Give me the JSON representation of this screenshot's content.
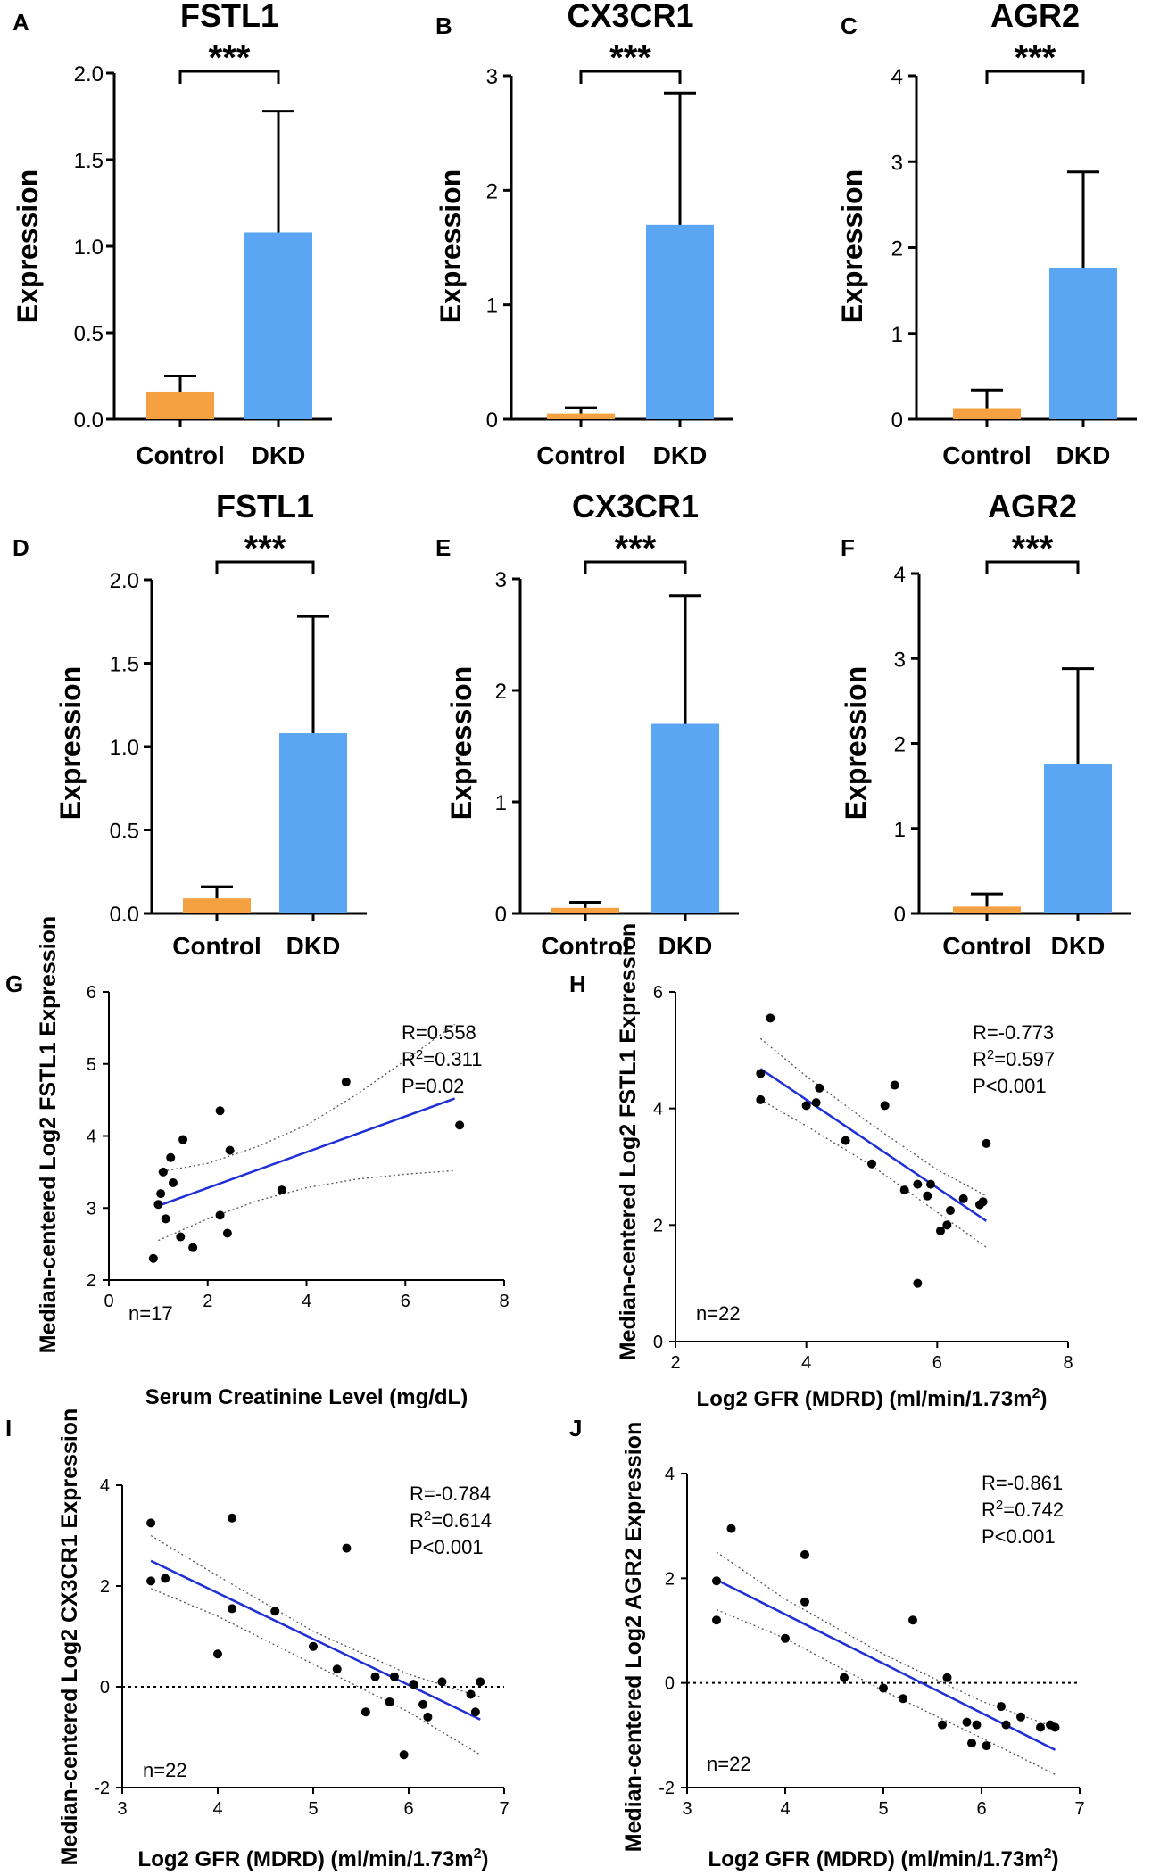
{
  "colors": {
    "control": "#F5A142",
    "dkd": "#5AA6F2",
    "fit": "#1F2FD6",
    "ci": "#555555",
    "point": "#000000"
  },
  "chart_data": [
    {
      "type": "bar",
      "panel": "A",
      "title": "FSTL1",
      "ylabel": "Expression",
      "categories": [
        "Control",
        "DKD"
      ],
      "values": [
        0.16,
        1.08
      ],
      "errors": [
        0.09,
        0.7
      ],
      "ylim": [
        0,
        2.0
      ],
      "yticks": [
        "0.0",
        "0.5",
        "1.0",
        "1.5",
        "2.0"
      ],
      "significance": "***"
    },
    {
      "type": "bar",
      "panel": "B",
      "title": "CX3CR1",
      "ylabel": "Expression",
      "categories": [
        "Control",
        "DKD"
      ],
      "values": [
        0.05,
        1.7
      ],
      "errors": [
        0.05,
        1.15
      ],
      "ylim": [
        0,
        3
      ],
      "yticks": [
        "0",
        "1",
        "2",
        "3"
      ],
      "significance": "***"
    },
    {
      "type": "bar",
      "panel": "C",
      "title": "AGR2",
      "ylabel": "Expression",
      "categories": [
        "Control",
        "DKD"
      ],
      "values": [
        0.13,
        1.76
      ],
      "errors": [
        0.21,
        1.12
      ],
      "ylim": [
        0,
        4
      ],
      "yticks": [
        "0",
        "1",
        "2",
        "3",
        "4"
      ],
      "significance": "***"
    },
    {
      "type": "bar",
      "panel": "D",
      "title": "FSTL1",
      "ylabel": "Expression",
      "categories": [
        "Control",
        "DKD"
      ],
      "values": [
        0.09,
        1.08
      ],
      "errors": [
        0.07,
        0.7
      ],
      "ylim": [
        0,
        2.0
      ],
      "yticks": [
        "0.0",
        "0.5",
        "1.0",
        "1.5",
        "2.0"
      ],
      "significance": "***"
    },
    {
      "type": "bar",
      "panel": "E",
      "title": "CX3CR1",
      "ylabel": "Expression",
      "categories": [
        "Control",
        "DKD"
      ],
      "values": [
        0.05,
        1.7
      ],
      "errors": [
        0.05,
        1.15
      ],
      "ylim": [
        0,
        3
      ],
      "yticks": [
        "0",
        "1",
        "2",
        "3"
      ],
      "significance": "***"
    },
    {
      "type": "bar",
      "panel": "F",
      "title": "AGR2",
      "ylabel": "Expression",
      "categories": [
        "Control",
        "DKD"
      ],
      "values": [
        0.08,
        1.76
      ],
      "errors": [
        0.15,
        1.12
      ],
      "ylim": [
        0,
        4
      ],
      "yticks": [
        "0",
        "1",
        "2",
        "3",
        "4"
      ],
      "significance": "***"
    },
    {
      "type": "scatter",
      "panel": "G",
      "xlabel": "Serum Creatinine Level (mg/dL)",
      "ylabel": "Median-centered Log2 FSTL1 Expression",
      "xlim": [
        0,
        8
      ],
      "ylim": [
        2,
        6
      ],
      "xticks": [
        "0",
        "2",
        "4",
        "6",
        "8"
      ],
      "yticks": [
        "2",
        "3",
        "4",
        "5",
        "6"
      ],
      "stats": {
        "r": "R=0.558",
        "r2_prefix": "R",
        "r2_sup": "2",
        "r2_value": "=0.311",
        "p": "P=0.02"
      },
      "n": "n=17",
      "zero_line": false,
      "points": [
        [
          0.9,
          2.3
        ],
        [
          1.0,
          3.05
        ],
        [
          1.05,
          3.2
        ],
        [
          1.1,
          3.5
        ],
        [
          1.15,
          2.85
        ],
        [
          1.25,
          3.7
        ],
        [
          1.3,
          3.35
        ],
        [
          1.45,
          2.6
        ],
        [
          1.5,
          3.95
        ],
        [
          1.7,
          2.45
        ],
        [
          2.25,
          2.9
        ],
        [
          2.25,
          4.35
        ],
        [
          2.4,
          2.65
        ],
        [
          2.45,
          3.8
        ],
        [
          3.5,
          3.25
        ],
        [
          4.8,
          4.75
        ],
        [
          7.1,
          4.15
        ]
      ],
      "fit": [
        [
          1.0,
          3.03
        ],
        [
          7.0,
          4.52
        ]
      ],
      "ci_upper": [
        [
          1.0,
          3.5
        ],
        [
          2.0,
          3.62
        ],
        [
          3.0,
          3.85
        ],
        [
          4.0,
          4.15
        ],
        [
          5.0,
          4.57
        ],
        [
          6.0,
          5.05
        ],
        [
          7.0,
          5.55
        ]
      ],
      "ci_lower": [
        [
          1.0,
          2.55
        ],
        [
          2.0,
          2.85
        ],
        [
          3.0,
          3.1
        ],
        [
          4.0,
          3.28
        ],
        [
          5.0,
          3.4
        ],
        [
          6.0,
          3.47
        ],
        [
          7.0,
          3.52
        ]
      ]
    },
    {
      "type": "scatter",
      "panel": "H",
      "xlabel": "Log2 GFR (MDRD) (ml/min/1.73m",
      "xlabel_sup": "2",
      "xlabel_end": ")",
      "ylabel": "Median-centered Log2 FSTL1 Expression",
      "xlim": [
        2,
        8
      ],
      "ylim": [
        0,
        6
      ],
      "xticks": [
        "2",
        "4",
        "6",
        "8"
      ],
      "yticks": [
        "0",
        "2",
        "4",
        "6"
      ],
      "stats": {
        "r": "R=-0.773",
        "r2_prefix": "R",
        "r2_sup": "2",
        "r2_value": "=0.597",
        "p": "P<0.001"
      },
      "n": "n=22",
      "zero_line": false,
      "points": [
        [
          3.3,
          4.6
        ],
        [
          3.3,
          4.15
        ],
        [
          3.45,
          5.55
        ],
        [
          4.0,
          4.05
        ],
        [
          4.15,
          4.1
        ],
        [
          4.2,
          4.35
        ],
        [
          4.6,
          3.45
        ],
        [
          5.0,
          3.05
        ],
        [
          5.2,
          4.05
        ],
        [
          5.35,
          4.4
        ],
        [
          5.5,
          2.6
        ],
        [
          5.7,
          2.7
        ],
        [
          5.7,
          1.0
        ],
        [
          5.85,
          2.5
        ],
        [
          5.9,
          2.7
        ],
        [
          6.05,
          1.9
        ],
        [
          6.15,
          2.0
        ],
        [
          6.2,
          2.25
        ],
        [
          6.4,
          2.45
        ],
        [
          6.65,
          2.35
        ],
        [
          6.7,
          2.4
        ],
        [
          6.75,
          3.4
        ]
      ],
      "fit": [
        [
          3.3,
          4.68
        ],
        [
          6.75,
          2.07
        ]
      ],
      "ci_upper": [
        [
          3.3,
          5.2
        ],
        [
          4.0,
          4.55
        ],
        [
          5.0,
          3.72
        ],
        [
          6.0,
          2.95
        ],
        [
          6.75,
          2.5
        ]
      ],
      "ci_lower": [
        [
          3.3,
          4.15
        ],
        [
          4.0,
          3.7
        ],
        [
          5.0,
          3.02
        ],
        [
          6.0,
          2.22
        ],
        [
          6.75,
          1.62
        ]
      ]
    },
    {
      "type": "scatter",
      "panel": "I",
      "xlabel": "Log2 GFR (MDRD) (ml/min/1.73m",
      "xlabel_sup": "2",
      "xlabel_end": ")",
      "ylabel": "Median-centered Log2 CX3CR1  Expression",
      "xlim": [
        3,
        7
      ],
      "ylim": [
        -2,
        4
      ],
      "xticks": [
        "3",
        "4",
        "5",
        "6",
        "7"
      ],
      "yticks": [
        "-2",
        "0",
        "2",
        "4"
      ],
      "stats": {
        "r": "R=-0.784",
        "r2_prefix": "R",
        "r2_sup": "2",
        "r2_value": "=0.614",
        "p": "P<0.001"
      },
      "n": "n=22",
      "zero_line": true,
      "points": [
        [
          3.3,
          3.25
        ],
        [
          3.3,
          2.1
        ],
        [
          3.45,
          2.15
        ],
        [
          4.0,
          0.65
        ],
        [
          4.15,
          3.35
        ],
        [
          4.15,
          1.55
        ],
        [
          4.6,
          1.5
        ],
        [
          5.0,
          0.8
        ],
        [
          5.25,
          0.35
        ],
        [
          5.35,
          2.75
        ],
        [
          5.55,
          -0.5
        ],
        [
          5.65,
          0.2
        ],
        [
          5.8,
          -0.3
        ],
        [
          5.85,
          0.2
        ],
        [
          5.95,
          -1.35
        ],
        [
          6.05,
          0.05
        ],
        [
          6.15,
          -0.35
        ],
        [
          6.2,
          -0.6
        ],
        [
          6.35,
          0.1
        ],
        [
          6.65,
          -0.15
        ],
        [
          6.7,
          -0.5
        ],
        [
          6.75,
          0.1
        ]
      ],
      "fit": [
        [
          3.3,
          2.5
        ],
        [
          6.75,
          -0.65
        ]
      ],
      "ci_upper": [
        [
          3.3,
          3.0
        ],
        [
          4.0,
          2.2
        ],
        [
          5.0,
          1.1
        ],
        [
          6.0,
          0.25
        ],
        [
          6.75,
          -0.2
        ]
      ],
      "ci_lower": [
        [
          3.3,
          1.95
        ],
        [
          4.0,
          1.4
        ],
        [
          5.0,
          0.45
        ],
        [
          6.0,
          -0.5
        ],
        [
          6.75,
          -1.35
        ]
      ]
    },
    {
      "type": "scatter",
      "panel": "J",
      "xlabel": "Log2 GFR (MDRD) (ml/min/1.73m",
      "xlabel_sup": "2",
      "xlabel_end": ")",
      "ylabel": "Median-centered Log2 AGR2  Expression",
      "xlim": [
        3,
        7
      ],
      "ylim": [
        -2,
        4
      ],
      "xticks": [
        "3",
        "4",
        "5",
        "6",
        "7"
      ],
      "yticks": [
        "-2",
        "0",
        "2",
        "4"
      ],
      "stats": {
        "r": "R=-0.861",
        "r2_prefix": "R",
        "r2_sup": "2",
        "r2_value": "=0.742",
        "p": "P<0.001"
      },
      "n": "n=22",
      "zero_line": true,
      "points": [
        [
          3.3,
          1.95
        ],
        [
          3.3,
          1.2
        ],
        [
          3.45,
          2.95
        ],
        [
          4.0,
          0.85
        ],
        [
          4.2,
          2.45
        ],
        [
          4.2,
          1.55
        ],
        [
          4.6,
          0.1
        ],
        [
          5.0,
          -0.1
        ],
        [
          5.2,
          -0.3
        ],
        [
          5.3,
          1.2
        ],
        [
          5.6,
          -0.8
        ],
        [
          5.65,
          0.1
        ],
        [
          5.85,
          -0.75
        ],
        [
          5.9,
          -1.15
        ],
        [
          5.95,
          -0.8
        ],
        [
          6.05,
          -1.2
        ],
        [
          6.2,
          -0.45
        ],
        [
          6.25,
          -0.8
        ],
        [
          6.4,
          -0.65
        ],
        [
          6.6,
          -0.85
        ],
        [
          6.7,
          -0.8
        ],
        [
          6.75,
          -0.85
        ]
      ],
      "fit": [
        [
          3.3,
          1.97
        ],
        [
          6.75,
          -1.28
        ]
      ],
      "ci_upper": [
        [
          3.3,
          2.5
        ],
        [
          4.0,
          1.6
        ],
        [
          5.0,
          0.55
        ],
        [
          6.0,
          -0.35
        ],
        [
          6.75,
          -0.85
        ]
      ],
      "ci_lower": [
        [
          3.3,
          1.4
        ],
        [
          4.0,
          0.85
        ],
        [
          5.0,
          -0.15
        ],
        [
          6.0,
          -1.05
        ],
        [
          6.75,
          -1.75
        ]
      ]
    }
  ]
}
